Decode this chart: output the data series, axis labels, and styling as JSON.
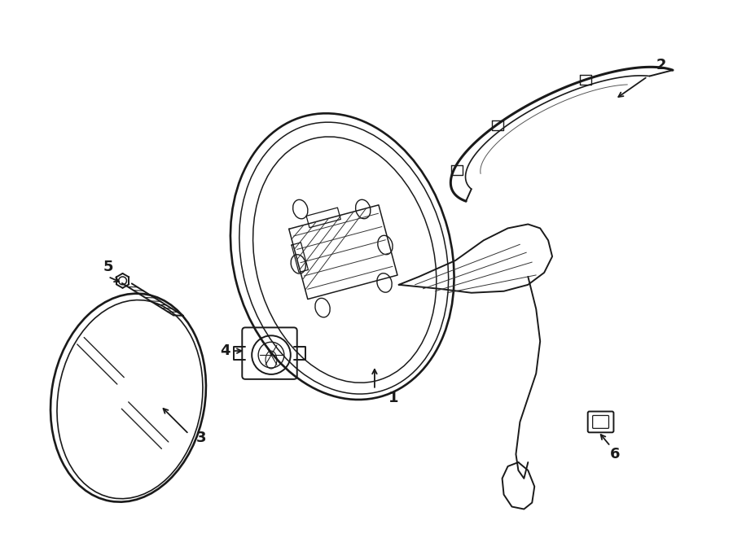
{
  "bg_color": "#ffffff",
  "line_color": "#1a1a1a",
  "lw": 1.4,
  "fig_w": 9.0,
  "fig_h": 6.61,
  "dpi": 100
}
